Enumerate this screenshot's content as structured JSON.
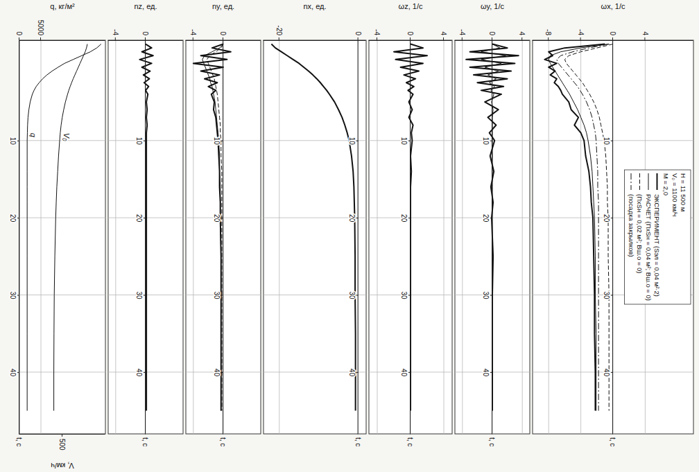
{
  "chart_data": [
    {
      "type": "line",
      "y_label": "ωx, 1/с",
      "x_label": "t, c",
      "xlim": [
        -3,
        48
      ],
      "xticks": [
        10,
        20,
        30,
        40
      ],
      "ylim": [
        -10,
        10
      ],
      "yticks": [
        -8,
        -4,
        0,
        4
      ],
      "grid": true,
      "legend": "upper center",
      "annotations": [
        "H = 11 500 м",
        "V₀ = 1100 км/ч",
        "M = 2,0"
      ],
      "x": [
        -2.5,
        -2,
        -1.5,
        -1,
        -0.5,
        0,
        0.5,
        1,
        1.5,
        2,
        2.5,
        3,
        3.5,
        4,
        5,
        6,
        7,
        8,
        9,
        10,
        12,
        14,
        16,
        18,
        20,
        25,
        30,
        35,
        40,
        45
      ],
      "series": [
        {
          "name": "ЭКСПЕРИМЕНТ (Sэл = 0,04 м²·2)",
          "color": "#111111",
          "line_style": "heavy",
          "values": [
            -1,
            -6,
            -8,
            -7.5,
            -8.5,
            -7,
            -8,
            -7.2,
            -7.8,
            -7,
            -7.3,
            -6.8,
            -6.5,
            -6.3,
            -5.5,
            -5.2,
            -4.3,
            -4.8,
            -4,
            -3.6,
            -3.4,
            -3,
            -2.8,
            -2.7,
            -2.5,
            -2.4,
            -2.3,
            -2.3,
            -2.2,
            -2.2
          ]
        },
        {
          "name": "РАСЧЕТ (ΠxSн = 0,04 м²; Bш.о = 0)",
          "color": "#111111",
          "line_style": "solid",
          "values": [
            -0.5,
            -4,
            -6.5,
            -7.8,
            -8,
            -7.8,
            -7.5,
            -7.2,
            -6.9,
            -6.6,
            -6.3,
            -6,
            -5.7,
            -5.4,
            -4.9,
            -4.4,
            -4,
            -3.6,
            -3.3,
            -3.1,
            -2.8,
            -2.6,
            -2.5,
            -2.4,
            -2.3,
            -2.2,
            -2.2,
            -2.1,
            -2.1,
            -2.1
          ]
        },
        {
          "name": "(ΠxSн = 0,02 м²; Bш.о = 0)",
          "color": "#111111",
          "line_style": "dashed",
          "values": [
            0,
            -2,
            -4,
            -5.5,
            -6,
            -5.8,
            -5.4,
            -5,
            -4.6,
            -4.2,
            -3.8,
            -3.5,
            -3.2,
            -2.9,
            -2.4,
            -2,
            -1.7,
            -1.5,
            -1.3,
            -1.1,
            -0.9,
            -0.8,
            -0.7,
            -0.7,
            -0.6,
            -0.6,
            -0.5,
            -0.5,
            -0.5,
            -0.5
          ]
        },
        {
          "name": "(посадка закрылков)",
          "color": "#111111",
          "line_style": "dashdot",
          "values": [
            -0.5,
            -3,
            -5,
            -6.5,
            -7,
            -6.8,
            -6.4,
            -6,
            -5.6,
            -5.2,
            -4.8,
            -4.4,
            -4.1,
            -3.8,
            -3.3,
            -2.9,
            -2.6,
            -2.4,
            -2.2,
            -2.1,
            -2,
            -1.9,
            -1.9,
            -1.8,
            -1.8,
            -1.8,
            -1.8,
            -1.8,
            -1.8,
            -1.8
          ]
        }
      ]
    },
    {
      "type": "line",
      "y_label": "ωy, 1/с",
      "x_label": "t, c",
      "xlim": [
        -3,
        48
      ],
      "xticks": [
        10,
        20,
        30,
        40
      ],
      "ylim": [
        -5,
        5
      ],
      "yticks": [
        -4,
        0,
        4
      ],
      "grid": true,
      "x": [
        -2.5,
        -2,
        -1.5,
        -1,
        -0.5,
        0,
        0.5,
        1,
        1.5,
        2,
        2.5,
        3,
        3.5,
        4,
        5,
        6,
        7,
        8,
        9,
        10,
        12,
        14,
        16,
        18,
        20,
        25,
        30,
        35,
        40,
        45
      ],
      "series": [
        {
          "color": "#111111",
          "line_style": "heavy",
          "values": [
            0,
            2,
            -3,
            3.5,
            -3.5,
            3,
            -3,
            2.5,
            -2.5,
            2,
            -2,
            1.5,
            -1.5,
            1.2,
            -1,
            0.8,
            -0.6,
            0.5,
            -0.4,
            0.3,
            -0.3,
            0.2,
            -0.2,
            0.1,
            -0.1,
            0.1,
            0,
            0,
            0,
            0
          ]
        },
        {
          "color": "#111111",
          "line_style": "solid",
          "values": [
            0,
            1,
            -1.5,
            1.8,
            -1.5,
            1.2,
            -1,
            0.8,
            -0.6,
            0.5,
            -0.4,
            0.3,
            -0.2,
            0.2,
            -0.1,
            0.1,
            0,
            0,
            0,
            0,
            0,
            0,
            0,
            0,
            0,
            0,
            0,
            0,
            0,
            0
          ]
        }
      ]
    },
    {
      "type": "line",
      "y_label": "ωz, 1/с",
      "x_label": "t, c",
      "xlim": [
        -3,
        48
      ],
      "xticks": [
        10,
        20,
        30,
        40
      ],
      "ylim": [
        -5,
        5
      ],
      "yticks": [
        -4,
        0,
        4
      ],
      "grid": true,
      "x": [
        -2.5,
        -2,
        -1.5,
        -1,
        -0.5,
        0,
        0.5,
        1,
        1.5,
        2,
        2.5,
        3,
        3.5,
        4,
        5,
        6,
        7,
        8,
        9,
        10,
        12,
        14,
        16,
        18,
        20,
        25,
        30,
        35,
        40,
        45
      ],
      "series": [
        {
          "color": "#111111",
          "line_style": "heavy",
          "values": [
            0,
            1.5,
            -2,
            2,
            -1.8,
            1.5,
            -1.2,
            1,
            -0.8,
            0.6,
            -0.5,
            0.4,
            -0.3,
            0.3,
            -0.2,
            0.2,
            -0.2,
            0.3,
            0.1,
            0.2,
            0,
            0.1,
            0,
            0,
            0,
            0,
            0,
            0,
            0,
            0
          ]
        }
      ]
    },
    {
      "type": "line",
      "y_label": "nx, ед.",
      "x_label": "t, c",
      "xlim": [
        -3,
        48
      ],
      "xticks": [
        10,
        20,
        30,
        40
      ],
      "ylim": [
        -24,
        2
      ],
      "yticks": [
        -20,
        0
      ],
      "grid": true,
      "x": [
        -2.5,
        -2,
        -1.5,
        -1,
        -0.5,
        0,
        0.5,
        1,
        1.5,
        2,
        2.5,
        3,
        3.5,
        4,
        5,
        6,
        7,
        8,
        9,
        10,
        12,
        14,
        16,
        18,
        20,
        25,
        30,
        35,
        40,
        45
      ],
      "series": [
        {
          "color": "#111111",
          "line_style": "heavy",
          "values": [
            -22,
            -21,
            -19.5,
            -18,
            -16.5,
            -15,
            -13.8,
            -12.6,
            -11.5,
            -10.5,
            -9.6,
            -8.8,
            -8,
            -7.3,
            -6,
            -5,
            -4.1,
            -3.4,
            -2.8,
            -2.3,
            -1.7,
            -1.3,
            -1.1,
            -1,
            -0.9,
            -0.8,
            -0.8,
            -0.7,
            -0.7,
            -0.7
          ]
        }
      ]
    },
    {
      "type": "line",
      "y_label": "ny, ед.",
      "x_label": "t, c",
      "xlim": [
        -3,
        48
      ],
      "xticks": [
        10,
        20,
        30,
        40
      ],
      "ylim": [
        -5,
        5
      ],
      "yticks": [
        -4,
        0
      ],
      "grid": true,
      "x": [
        -2.5,
        -2,
        -1.5,
        -1,
        -0.5,
        0,
        0.5,
        1,
        1.5,
        2,
        2.5,
        3,
        3.5,
        4,
        5,
        6,
        7,
        8,
        9,
        10,
        12,
        14,
        16,
        18,
        20,
        25,
        30,
        35,
        40,
        45
      ],
      "series": [
        {
          "color": "#111111",
          "line_style": "heavy",
          "values": [
            0,
            -1.5,
            1,
            -3,
            0.5,
            -4,
            0,
            -3,
            -0.5,
            -2.5,
            -0.8,
            -2,
            -1,
            -1.6,
            -1.2,
            -1.3,
            -1,
            -0.9,
            -0.8,
            -0.7,
            -0.6,
            -0.5,
            -0.5,
            -0.4,
            -0.4,
            -0.3,
            -0.3,
            -0.3,
            -0.3,
            -0.3
          ]
        },
        {
          "color": "#111111",
          "line_style": "solid",
          "values": [
            0,
            -0.5,
            -1.5,
            -2.5,
            -2.8,
            -2.6,
            -2.4,
            -2.2,
            -2,
            -1.8,
            -1.7,
            -1.5,
            -1.4,
            -1.3,
            -1.1,
            -1,
            -0.9,
            -0.8,
            -0.7,
            -0.6,
            -0.5,
            -0.5,
            -0.4,
            -0.4,
            -0.4,
            -0.3,
            -0.3,
            -0.3,
            -0.3,
            -0.3
          ]
        },
        {
          "color": "#111111",
          "line_style": "dashed",
          "values": [
            0,
            -0.3,
            -1,
            -1.8,
            -2.2,
            -2,
            -1.8,
            -1.6,
            -1.4,
            -1.2,
            -1.1,
            -1,
            -0.9,
            -0.8,
            -0.7,
            -0.6,
            -0.5,
            -0.4,
            -0.4,
            -0.3,
            -0.3,
            -0.2,
            -0.2,
            -0.2,
            -0.2,
            -0.2,
            -0.2,
            -0.2,
            -0.2,
            -0.2
          ]
        }
      ]
    },
    {
      "type": "line",
      "y_label": "nz, ед.",
      "x_label": "t, c",
      "xlim": [
        -3,
        48
      ],
      "xticks": [
        10,
        20,
        30,
        40
      ],
      "ylim": [
        -5,
        5
      ],
      "yticks": [
        -4,
        0
      ],
      "grid": true,
      "x": [
        -2.5,
        -2,
        -1.5,
        -1,
        -0.5,
        0,
        0.5,
        1,
        1.5,
        2,
        2.5,
        3,
        3.5,
        4,
        5,
        6,
        7,
        8,
        9,
        10,
        12,
        14,
        16,
        18,
        20,
        25,
        30,
        35,
        40,
        45
      ],
      "series": [
        {
          "color": "#111111",
          "line_style": "heavy",
          "values": [
            0,
            0.8,
            -0.5,
            1,
            -0.8,
            0.8,
            -0.5,
            0.6,
            -0.3,
            0.5,
            -0.2,
            0.4,
            0,
            0.3,
            0.1,
            0.2,
            0.1,
            0.2,
            0.1,
            0.1,
            0.1,
            0.1,
            0.1,
            0.1,
            0.1,
            0.1,
            0.1,
            0.1,
            0.1,
            0.1
          ]
        }
      ]
    },
    {
      "type": "line",
      "y_label": "q, кг/м²",
      "y2_label": "V, км/ч",
      "x_label": "t, c",
      "xlim": [
        -3,
        48
      ],
      "xticks": [
        10,
        20,
        30,
        40
      ],
      "ylim": [
        0,
        20000
      ],
      "yticks": [
        0,
        5000
      ],
      "y2lim": [
        0,
        1000
      ],
      "y2ticks": [
        500
      ],
      "grid": true,
      "x": [
        -2.5,
        -2,
        -1.5,
        -1,
        -0.5,
        0,
        0.5,
        1,
        1.5,
        2,
        2.5,
        3,
        3.5,
        4,
        5,
        6,
        7,
        8,
        9,
        10,
        12,
        14,
        16,
        18,
        20,
        25,
        30,
        35,
        40,
        45
      ],
      "series": [
        {
          "name": "q",
          "color": "#111111",
          "line_style": "solid",
          "values": [
            19000,
            18000,
            16500,
            14500,
            12500,
            10500,
            9000,
            7600,
            6400,
            5400,
            4600,
            3900,
            3400,
            3000,
            2500,
            2200,
            2000,
            1900,
            1850,
            1800,
            1800,
            1800,
            1800,
            1800,
            1800,
            1800,
            1800,
            1800,
            1800,
            1800
          ]
        },
        {
          "name": "V₀",
          "color": "#111111",
          "line_style": "solid",
          "axis": "y2",
          "values": [
            790,
            780,
            765,
            745,
            725,
            705,
            685,
            665,
            645,
            625,
            607,
            590,
            574,
            560,
            535,
            515,
            498,
            485,
            475,
            468,
            455,
            445,
            435,
            428,
            422,
            412,
            405,
            402,
            400,
            400
          ]
        }
      ]
    }
  ]
}
